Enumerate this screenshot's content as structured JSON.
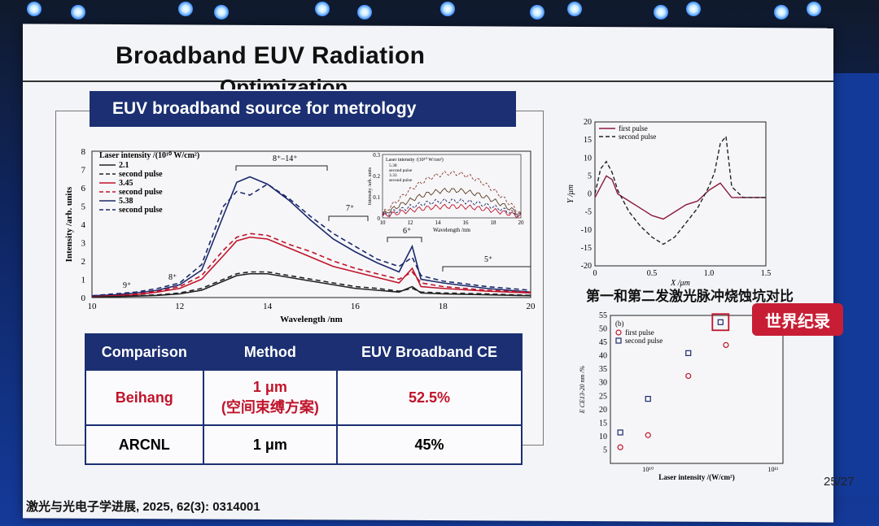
{
  "slide": {
    "title_line1": "Broadband EUV Radiation",
    "title_line2": "Optimization",
    "banner": "EUV broadband source for metrology",
    "caption_right": "第一和第二发激光脉冲烧蚀坑对比",
    "record_badge": "世界纪录",
    "page_number": "25/27",
    "citation": "激光与光电子学进展, 2025, 62(3): 0314001"
  },
  "table": {
    "headers": [
      "Comparison",
      "Method",
      "EUV Broadband CE"
    ],
    "rows": [
      {
        "comparison": "Beihang",
        "method_line1": "1 μm",
        "method_line2": "(空间束缚方案)",
        "ce": "52.5%"
      },
      {
        "comparison": "ARCNL",
        "method_line1": "1 μm",
        "method_line2": "",
        "ce": "45%"
      }
    ]
  },
  "colors": {
    "navy": "#1b2f72",
    "red": "#c0142b",
    "dark_blue_series": "#1c2a6b",
    "black_series": "#222222"
  },
  "chart_data": [
    {
      "type": "line",
      "xlabel": "Wavelength /nm",
      "ylabel": "Intensity /arb. units",
      "xlim": [
        10,
        20
      ],
      "ylim": [
        0,
        8
      ],
      "x_ticks": [
        "10",
        "12",
        "14",
        "16",
        "18",
        "20"
      ],
      "y_ticks": [
        "0",
        "1",
        "2",
        "3",
        "4",
        "5",
        "6",
        "7",
        "8"
      ],
      "legend_title": "Laser intensity /(10¹⁰ W/cm²)",
      "legend_entries": [
        "2.1",
        "second pulse",
        "3.45",
        "second pulse",
        "5.38",
        "second pulse"
      ],
      "annotations": [
        "8⁺–14⁺",
        "7⁺",
        "6⁺",
        "5⁺",
        "8⁺",
        "9⁺"
      ],
      "x": [
        10,
        10.5,
        11,
        11.5,
        12,
        12.5,
        13,
        13.3,
        13.6,
        14,
        14.5,
        15,
        15.5,
        16,
        16.5,
        17,
        17.3,
        17.5,
        18,
        19,
        20
      ],
      "series": [
        {
          "name": "5.38",
          "style": "solid",
          "color": "#1c2a6b",
          "values": [
            0.1,
            0.15,
            0.25,
            0.4,
            0.7,
            1.5,
            4.5,
            6.3,
            6.6,
            6.2,
            5.3,
            4.2,
            3.2,
            2.5,
            1.9,
            1.4,
            2.8,
            1.0,
            0.8,
            0.5,
            0.3
          ]
        },
        {
          "name": "second pulse",
          "style": "dashed",
          "color": "#1c2a6b",
          "values": [
            0.1,
            0.2,
            0.3,
            0.5,
            0.8,
            1.8,
            5.0,
            5.8,
            5.6,
            6.2,
            5.4,
            4.4,
            3.5,
            2.8,
            2.1,
            1.7,
            2.2,
            1.2,
            0.9,
            0.6,
            0.4
          ]
        },
        {
          "name": "3.45",
          "style": "solid",
          "color": "#c0142b",
          "values": [
            0.05,
            0.1,
            0.15,
            0.3,
            0.5,
            1.0,
            2.3,
            3.1,
            3.3,
            3.2,
            2.7,
            2.2,
            1.7,
            1.4,
            1.1,
            0.8,
            1.6,
            0.6,
            0.5,
            0.35,
            0.25
          ]
        },
        {
          "name": "second pulse",
          "style": "dashed",
          "color": "#c0142b",
          "values": [
            0.05,
            0.1,
            0.2,
            0.35,
            0.6,
            1.2,
            2.6,
            3.3,
            3.5,
            3.4,
            2.9,
            2.5,
            2.0,
            1.6,
            1.3,
            1.0,
            1.4,
            0.8,
            0.6,
            0.4,
            0.3
          ]
        },
        {
          "name": "2.1",
          "style": "solid",
          "color": "#222222",
          "values": [
            0.02,
            0.05,
            0.08,
            0.12,
            0.2,
            0.4,
            0.9,
            1.2,
            1.3,
            1.3,
            1.1,
            0.9,
            0.7,
            0.5,
            0.4,
            0.3,
            0.6,
            0.25,
            0.2,
            0.15,
            0.1
          ]
        },
        {
          "name": "second pulse",
          "style": "dashed",
          "color": "#222222",
          "values": [
            0.02,
            0.05,
            0.1,
            0.15,
            0.25,
            0.5,
            1.0,
            1.3,
            1.4,
            1.4,
            1.2,
            1.0,
            0.8,
            0.6,
            0.5,
            0.35,
            0.5,
            0.3,
            0.25,
            0.2,
            0.12
          ]
        }
      ]
    },
    {
      "type": "line",
      "xlabel": "Wavelength /nm",
      "ylabel": "Intensity /arb. units",
      "xlim": [
        10,
        20
      ],
      "ylim": [
        0,
        0.3
      ],
      "x_ticks": [
        "10",
        "12",
        "14",
        "16",
        "18",
        "20"
      ],
      "y_ticks": [
        "0",
        "0.1",
        "0.2",
        "0.3"
      ],
      "legend_title": "Laser intensity /(10¹⁰ W/cm²)",
      "legend_entries": [
        "5.38",
        "second pulse",
        "3.33",
        "second pulse"
      ]
    },
    {
      "type": "line",
      "xlabel": "X /μm",
      "ylabel": "Y /μm",
      "xlim": [
        0,
        1.5
      ],
      "ylim": [
        -20,
        20
      ],
      "x_ticks": [
        "0",
        "0.5",
        "1.0",
        "1.5"
      ],
      "y_ticks": [
        "20",
        "15",
        "10",
        "5",
        "0",
        "-5",
        "-10",
        "-15",
        "-20"
      ],
      "x": [
        0,
        0.05,
        0.1,
        0.15,
        0.2,
        0.3,
        0.4,
        0.5,
        0.6,
        0.7,
        0.8,
        0.9,
        1.0,
        1.05,
        1.1,
        1.15,
        1.2,
        1.3,
        1.4,
        1.5
      ],
      "series": [
        {
          "name": "first pulse",
          "style": "solid",
          "color": "#8b1a3a",
          "values": [
            -1,
            2,
            5,
            4,
            0,
            -2,
            -4,
            -6,
            -7,
            -5,
            -3,
            -2,
            1,
            2,
            3,
            1,
            -1,
            -1,
            -1,
            -1
          ]
        },
        {
          "name": "second pulse",
          "style": "dashed",
          "color": "#222222",
          "values": [
            0,
            7,
            9,
            6,
            1,
            -5,
            -9,
            -12,
            -14,
            -12,
            -8,
            -4,
            2,
            6,
            14,
            16,
            2,
            -1,
            -1,
            -1
          ]
        }
      ]
    },
    {
      "type": "scatter",
      "panel_label": "(b)",
      "xlabel": "Laser intensity /(W/cm²)",
      "ylabel": "E CE13-20 nm /%",
      "x_scale": "log",
      "ylim": [
        0,
        55
      ],
      "y_ticks": [
        "5",
        "10",
        "15",
        "20",
        "25",
        "30",
        "35",
        "40",
        "45",
        "50",
        "55"
      ],
      "x_ticks": [
        "10¹⁰",
        "10¹¹"
      ],
      "series": [
        {
          "name": "first pulse",
          "marker": "circle",
          "color": "#c0142b",
          "x": [
            6000000000.0,
            10000000000.0,
            21000000000.0,
            42000000000.0
          ],
          "values": [
            6,
            10.5,
            32.5,
            44
          ]
        },
        {
          "name": "second pulse",
          "marker": "square",
          "color": "#1c2a6b",
          "x": [
            6000000000.0,
            10000000000.0,
            21000000000.0,
            38000000000.0
          ],
          "values": [
            11.5,
            24,
            41,
            52.5
          ]
        }
      ]
    }
  ]
}
